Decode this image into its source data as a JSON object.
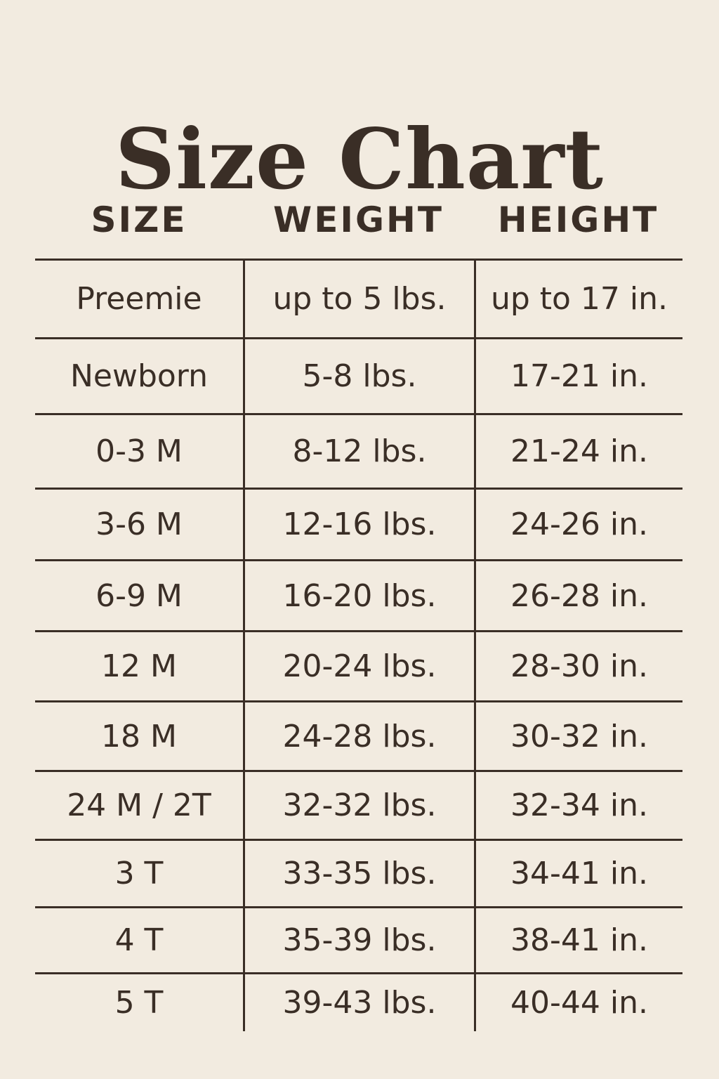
{
  "title": "Size Chart",
  "headers": [
    "SIZE",
    "WEIGHT",
    "HEIGHT"
  ],
  "rows": [
    [
      "Preemie",
      "up to 5 lbs.",
      "up to 17 in."
    ],
    [
      "Newborn",
      "5-8 lbs.",
      "17-21 in."
    ],
    [
      "0-3 M",
      "8-12 lbs.",
      "21-24 in."
    ],
    [
      "3-6 M",
      "12-16 lbs.",
      "24-26 in."
    ],
    [
      "6-9 M",
      "16-20 lbs.",
      "26-28 in."
    ],
    [
      "12 M",
      "20-24 lbs.",
      "28-30 in."
    ],
    [
      "18 M",
      "24-28 lbs.",
      "30-32 in."
    ],
    [
      "24 M / 2T",
      "32-32 lbs.",
      "32-34 in."
    ],
    [
      "3 T",
      "33-35 lbs.",
      "34-41 in."
    ],
    [
      "4 T",
      "35-39 lbs.",
      "38-41 in."
    ],
    [
      "5 T",
      "39-43 lbs.",
      "40-44 in."
    ]
  ],
  "colors": {
    "background": "#f2ebe0",
    "text": "#3a2e26"
  }
}
